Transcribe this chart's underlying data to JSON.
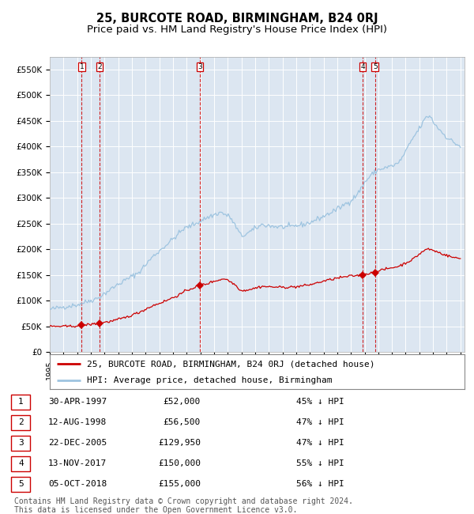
{
  "title": "25, BURCOTE ROAD, BIRMINGHAM, B24 0RJ",
  "subtitle": "Price paid vs. HM Land Registry's House Price Index (HPI)",
  "ylim": [
    0,
    575000
  ],
  "yticks": [
    0,
    50000,
    100000,
    150000,
    200000,
    250000,
    300000,
    350000,
    400000,
    450000,
    500000,
    550000
  ],
  "ytick_labels": [
    "£0",
    "£50K",
    "£100K",
    "£150K",
    "£200K",
    "£250K",
    "£300K",
    "£350K",
    "£400K",
    "£450K",
    "£500K",
    "£550K"
  ],
  "plot_bg_color": "#dce6f1",
  "grid_color": "#ffffff",
  "hpi_color": "#9ec4e0",
  "price_color": "#cc0000",
  "vline_color": "#cc0000",
  "sale_dates_x": [
    1997.33,
    1998.62,
    2005.98,
    2017.87,
    2018.76
  ],
  "sale_prices_y": [
    52000,
    56500,
    129950,
    150000,
    155000
  ],
  "sale_labels": [
    "1",
    "2",
    "3",
    "4",
    "5"
  ],
  "legend_price_label": "25, BURCOTE ROAD, BIRMINGHAM, B24 0RJ (detached house)",
  "legend_hpi_label": "HPI: Average price, detached house, Birmingham",
  "table_data": [
    [
      "1",
      "30-APR-1997",
      "£52,000",
      "45% ↓ HPI"
    ],
    [
      "2",
      "12-AUG-1998",
      "£56,500",
      "47% ↓ HPI"
    ],
    [
      "3",
      "22-DEC-2005",
      "£129,950",
      "47% ↓ HPI"
    ],
    [
      "4",
      "13-NOV-2017",
      "£150,000",
      "55% ↓ HPI"
    ],
    [
      "5",
      "05-OCT-2018",
      "£155,000",
      "56% ↓ HPI"
    ]
  ],
  "footer": "Contains HM Land Registry data © Crown copyright and database right 2024.\nThis data is licensed under the Open Government Licence v3.0.",
  "title_fontsize": 10.5,
  "subtitle_fontsize": 9.5,
  "tick_fontsize": 7.5,
  "legend_fontsize": 8,
  "table_fontsize": 8,
  "footer_fontsize": 7
}
